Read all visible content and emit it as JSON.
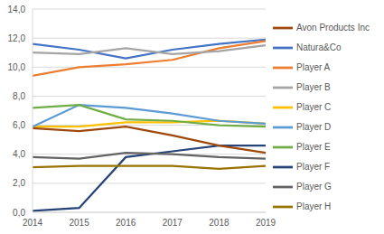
{
  "chart_data": {
    "type": "line",
    "categories": [
      "2014",
      "2015",
      "2016",
      "2017",
      "2018",
      "2019"
    ],
    "series": [
      {
        "name": "Natura&Co",
        "color": "#4472C4",
        "values": [
          11.6,
          11.2,
          10.6,
          11.2,
          11.6,
          11.9
        ]
      },
      {
        "name": "Player A",
        "color": "#ED7D31",
        "values": [
          9.4,
          10.0,
          10.2,
          10.5,
          11.3,
          11.8
        ]
      },
      {
        "name": "Player B",
        "color": "#A5A5A5",
        "values": [
          11.0,
          10.9,
          11.3,
          10.9,
          11.1,
          11.5
        ]
      },
      {
        "name": "Player C",
        "color": "#FFC000",
        "values": [
          5.9,
          5.9,
          6.2,
          6.2,
          6.3,
          6.1
        ]
      },
      {
        "name": "Player D",
        "color": "#5B9BD5",
        "values": [
          5.9,
          7.4,
          7.2,
          6.8,
          6.3,
          6.1
        ]
      },
      {
        "name": "Player E",
        "color": "#70AD47",
        "values": [
          7.2,
          7.4,
          6.4,
          6.3,
          6.0,
          5.9
        ]
      },
      {
        "name": "Player F",
        "color": "#264478",
        "values": [
          0.1,
          0.3,
          3.8,
          4.2,
          4.6,
          4.6
        ]
      },
      {
        "name": "Avon Products Inc",
        "color": "#9E480E",
        "values": [
          5.8,
          5.6,
          5.9,
          5.3,
          4.6,
          4.1
        ]
      },
      {
        "name": "Player G",
        "color": "#636363",
        "values": [
          3.8,
          3.7,
          4.1,
          4.0,
          3.8,
          3.7
        ]
      },
      {
        "name": "Player H",
        "color": "#997300",
        "values": [
          3.1,
          3.2,
          3.2,
          3.2,
          3.0,
          3.2
        ]
      }
    ],
    "ylim": [
      0,
      14
    ],
    "yticks": [
      {
        "value": 0,
        "label": "0,0"
      },
      {
        "value": 2,
        "label": "2,0"
      },
      {
        "value": 4,
        "label": "4,0"
      },
      {
        "value": 6,
        "label": "6,0"
      },
      {
        "value": 8,
        "label": "8,0"
      },
      {
        "value": 10,
        "label": "10,0"
      },
      {
        "value": 12,
        "label": "12,0"
      },
      {
        "value": 14,
        "label": "14,0"
      }
    ],
    "grid": true,
    "legend": "right",
    "marker": "none",
    "line_style": "solid"
  }
}
